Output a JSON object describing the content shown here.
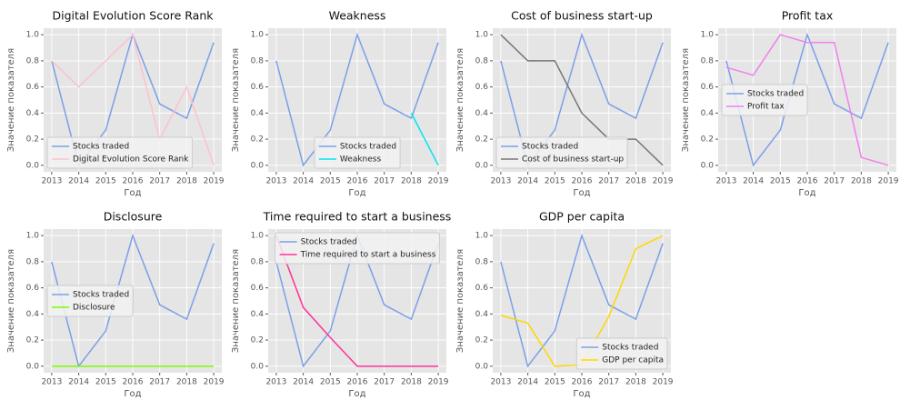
{
  "chart_data": [
    {
      "type": "line",
      "title": "Digital Evolution Score Rank",
      "xlabel": "Год",
      "ylabel": "Значение показателя",
      "x": [
        2013,
        2014,
        2015,
        2016,
        2017,
        2018,
        2019
      ],
      "xlim": [
        2012.7,
        2019.3
      ],
      "xticks": [
        2013,
        2014,
        2015,
        2016,
        2017,
        2018,
        2019
      ],
      "ylim": [
        -0.05,
        1.05
      ],
      "yticks": [
        {
          "value": 0,
          "label": "0.0"
        },
        0.2,
        0.4,
        0.6,
        0.8,
        {
          "value": 1,
          "label": "1.0"
        }
      ],
      "grid": true,
      "legend": "lower left",
      "series": [
        {
          "name": "Stocks traded",
          "color": "#7b9fe8",
          "values": [
            0.8,
            0.0,
            0.27,
            1.0,
            0.47,
            0.36,
            0.94
          ]
        },
        {
          "name": "Digital Evolution Score Rank",
          "color": "#ffc0cb",
          "values": [
            0.8,
            0.6,
            0.8,
            1.0,
            0.2,
            0.6,
            0.0
          ]
        }
      ]
    },
    {
      "type": "line",
      "title": "Weakness",
      "xlabel": "Год",
      "ylabel": "Значение показателя",
      "x": [
        2013,
        2014,
        2015,
        2016,
        2017,
        2018,
        2019
      ],
      "xlim": [
        2012.7,
        2019.3
      ],
      "xticks": [
        2013,
        2014,
        2015,
        2016,
        2017,
        2018,
        2019
      ],
      "ylim": [
        -0.05,
        1.05
      ],
      "yticks": [
        {
          "value": 0,
          "label": "0.0"
        },
        0.2,
        0.4,
        0.6,
        0.8,
        {
          "value": 1,
          "label": "1.0"
        }
      ],
      "grid": true,
      "legend": "lower center",
      "series": [
        {
          "name": "Stocks traded",
          "color": "#7b9fe8",
          "values": [
            0.8,
            0.0,
            0.27,
            1.0,
            0.47,
            0.36,
            0.94
          ]
        },
        {
          "name": "Weakness",
          "color": "#00e5ee",
          "values": [
            null,
            null,
            null,
            null,
            null,
            0.4,
            0.0
          ]
        }
      ]
    },
    {
      "type": "line",
      "title": "Cost of business start-up",
      "xlabel": "Год",
      "ylabel": "Значение показателя",
      "x": [
        2013,
        2014,
        2015,
        2016,
        2017,
        2018,
        2019
      ],
      "xlim": [
        2012.7,
        2019.3
      ],
      "xticks": [
        2013,
        2014,
        2015,
        2016,
        2017,
        2018,
        2019
      ],
      "ylim": [
        -0.05,
        1.05
      ],
      "yticks": [
        {
          "value": 0,
          "label": "0.0"
        },
        0.2,
        0.4,
        0.6,
        0.8,
        {
          "value": 1,
          "label": "1.0"
        }
      ],
      "grid": true,
      "legend": "lower left",
      "series": [
        {
          "name": "Stocks traded",
          "color": "#7b9fe8",
          "values": [
            0.8,
            0.0,
            0.27,
            1.0,
            0.47,
            0.36,
            0.94
          ]
        },
        {
          "name": "Cost of business start-up",
          "color": "#777777",
          "values": [
            1.0,
            0.8,
            0.8,
            0.4,
            0.2,
            0.2,
            0.0
          ]
        }
      ]
    },
    {
      "type": "line",
      "title": "Profit tax",
      "xlabel": "Год",
      "ylabel": "Значение показателя",
      "x": [
        2013,
        2014,
        2015,
        2016,
        2017,
        2018,
        2019
      ],
      "xlim": [
        2012.7,
        2019.3
      ],
      "xticks": [
        2013,
        2014,
        2015,
        2016,
        2017,
        2018,
        2019
      ],
      "ylim": [
        -0.05,
        1.05
      ],
      "yticks": [
        {
          "value": 0,
          "label": "0.0"
        },
        0.2,
        0.4,
        0.6,
        0.8,
        {
          "value": 1,
          "label": "1.0"
        }
      ],
      "grid": true,
      "legend": "center left",
      "series": [
        {
          "name": "Stocks traded",
          "color": "#7b9fe8",
          "values": [
            0.8,
            0.0,
            0.27,
            1.0,
            0.47,
            0.36,
            0.94
          ]
        },
        {
          "name": "Profit tax",
          "color": "#ee82ee",
          "values": [
            0.75,
            0.69,
            1.0,
            0.94,
            0.94,
            0.06,
            0.0
          ]
        }
      ]
    },
    {
      "type": "line",
      "title": "Disclosure",
      "xlabel": "Год",
      "ylabel": "Значение показателя",
      "x": [
        2013,
        2014,
        2015,
        2016,
        2017,
        2018,
        2019
      ],
      "xlim": [
        2012.7,
        2019.3
      ],
      "xticks": [
        2013,
        2014,
        2015,
        2016,
        2017,
        2018,
        2019
      ],
      "ylim": [
        -0.05,
        1.05
      ],
      "yticks": [
        {
          "value": 0,
          "label": "0.0"
        },
        0.2,
        0.4,
        0.6,
        0.8,
        {
          "value": 1,
          "label": "1.0"
        }
      ],
      "grid": true,
      "legend": "center left",
      "series": [
        {
          "name": "Stocks traded",
          "color": "#7b9fe8",
          "values": [
            0.8,
            0.0,
            0.27,
            1.0,
            0.47,
            0.36,
            0.94
          ]
        },
        {
          "name": "Disclosure",
          "color": "#7cfc00",
          "values": [
            0,
            0,
            0,
            0,
            0,
            0,
            0
          ]
        }
      ]
    },
    {
      "type": "line",
      "title": "Time required to start a business",
      "xlabel": "Год",
      "ylabel": "Значение показателя",
      "x": [
        2013,
        2014,
        2015,
        2016,
        2017,
        2018,
        2019
      ],
      "xlim": [
        2012.7,
        2019.3
      ],
      "xticks": [
        2013,
        2014,
        2015,
        2016,
        2017,
        2018,
        2019
      ],
      "ylim": [
        -0.05,
        1.05
      ],
      "yticks": [
        {
          "value": 0,
          "label": "0.0"
        },
        0.2,
        0.4,
        0.6,
        0.8,
        {
          "value": 1,
          "label": "1.0"
        }
      ],
      "grid": true,
      "legend": "upper center",
      "series": [
        {
          "name": "Stocks traded",
          "color": "#7b9fe8",
          "values": [
            0.8,
            0.0,
            0.27,
            1.0,
            0.47,
            0.36,
            0.94
          ]
        },
        {
          "name": "Time required to start a business",
          "color": "#ff3399",
          "values": [
            1.0,
            0.45,
            0.22,
            0.0,
            0.0,
            0.0,
            0.0
          ]
        }
      ]
    },
    {
      "type": "line",
      "title": "GDP per capita",
      "xlabel": "Год",
      "ylabel": "Значение показателя",
      "x": [
        2013,
        2014,
        2015,
        2016,
        2017,
        2018,
        2019
      ],
      "xlim": [
        2012.7,
        2019.3
      ],
      "xticks": [
        2013,
        2014,
        2015,
        2016,
        2017,
        2018,
        2019
      ],
      "ylim": [
        -0.05,
        1.05
      ],
      "yticks": [
        {
          "value": 0,
          "label": "0.0"
        },
        0.2,
        0.4,
        0.6,
        0.8,
        {
          "value": 1,
          "label": "1.0"
        }
      ],
      "grid": true,
      "legend": "lower right",
      "series": [
        {
          "name": "Stocks traded",
          "color": "#7b9fe8",
          "values": [
            0.8,
            0.0,
            0.27,
            1.0,
            0.47,
            0.36,
            0.94
          ]
        },
        {
          "name": "GDP per capita",
          "color": "#ffd700",
          "values": [
            0.39,
            0.33,
            0.0,
            0.01,
            0.38,
            0.9,
            1.0
          ]
        }
      ]
    }
  ]
}
